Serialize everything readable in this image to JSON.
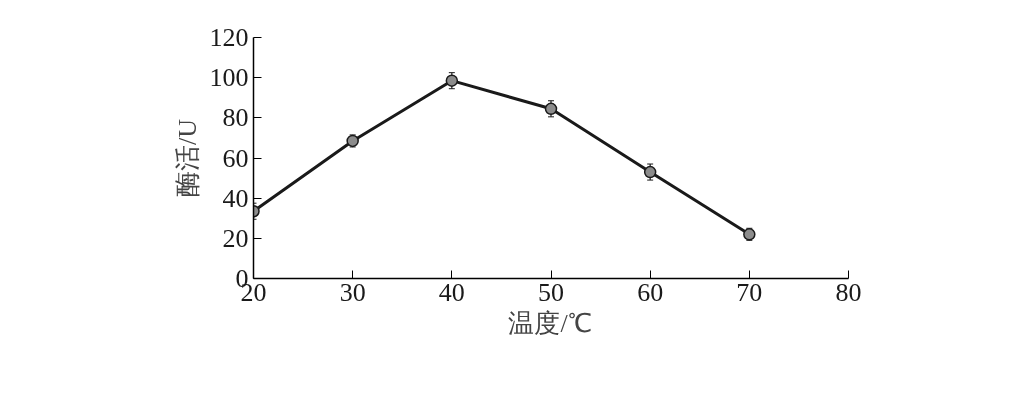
{
  "chart_data": {
    "type": "line",
    "xlabel": "温度/℃",
    "ylabel": "酶活/U",
    "x": [
      20,
      30,
      40,
      50,
      60,
      70
    ],
    "series": [
      {
        "color": "#1a1a1a",
        "values": [
          33.5,
          68.5,
          98.5,
          84.5,
          53,
          22
        ],
        "errors": [
          4,
          3,
          4,
          4,
          4,
          3
        ]
      }
    ],
    "xlim": [
      20,
      80
    ],
    "xticks": [
      20,
      30,
      40,
      50,
      60,
      70,
      80
    ],
    "ylim": [
      0,
      120
    ],
    "yticks": [
      0,
      20,
      40,
      60,
      80,
      100,
      120
    ],
    "marker": "circle",
    "line_style": "solid"
  }
}
